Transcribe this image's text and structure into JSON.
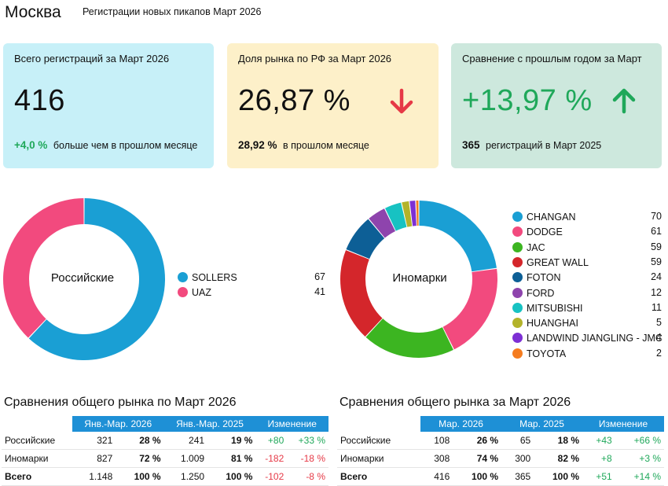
{
  "header": {
    "city": "Москва",
    "subtitle": "Регистрации новых пикапов Март 2026"
  },
  "cards": [
    {
      "label": "Всего регистраций за Март 2026",
      "value": "416",
      "delta": "+4,0 %",
      "delta_text": "больше чем в прошлом месяце",
      "delta_color": "#1fa85a",
      "background": "#c7f0f8"
    },
    {
      "label": "Доля рынка по РФ за Март 2026",
      "value": "26,87 %",
      "delta": "28,92 %",
      "delta_text": "в прошлом месяце",
      "trend": "down",
      "trend_color": "#e63946",
      "background": "#fdf0c9"
    },
    {
      "label": "Сравнение с прошлым годом за Март",
      "value": "+13,97 %",
      "delta": "365",
      "delta_text": "регистраций в Март 2025",
      "trend": "up",
      "trend_color": "#1fa85a",
      "value_color": "#1fa85a",
      "background": "#cde8dd"
    }
  ],
  "chart_data": [
    {
      "type": "pie",
      "subtype": "donut",
      "center_label": "Российские",
      "categories": [
        "SOLLERS",
        "UAZ"
      ],
      "values": [
        67,
        41
      ],
      "colors": [
        "#1a9fd4",
        "#f24a7e"
      ],
      "legend_position": "right"
    },
    {
      "type": "pie",
      "subtype": "donut",
      "center_label": "Иномарки",
      "categories": [
        "CHANGAN",
        "DODGE",
        "JAC",
        "GREAT WALL",
        "FOTON",
        "FORD",
        "MITSUBISHI",
        "HUANGHAI",
        "LANDWIND JIANGLING - JMC",
        "TOYOTA"
      ],
      "values": [
        70,
        61,
        59,
        59,
        24,
        12,
        11,
        5,
        4,
        2
      ],
      "value_labels": [
        "70",
        "61",
        "59",
        "59",
        "24",
        "12",
        "11",
        "5",
        "4",
        "2"
      ],
      "colors": [
        "#1a9fd4",
        "#f24a7e",
        "#3cb521",
        "#d4262b",
        "#0d5f96",
        "#8e44ad",
        "#17c2c2",
        "#b3b32a",
        "#7d2fd4",
        "#f57c1f"
      ],
      "legend_position": "right"
    }
  ],
  "tables": [
    {
      "title": "Сравнения общего рынка по Март 2026",
      "headers": [
        "",
        "Янв.-Мар. 2026",
        "Янв.-Мар. 2025",
        "Изменение"
      ],
      "rows": [
        {
          "name": "Российские",
          "v1": "321",
          "p1": "28 %",
          "v2": "241",
          "p2": "19 %",
          "d": "+80",
          "dp": "+33 %",
          "dir": "up"
        },
        {
          "name": "Иномарки",
          "v1": "827",
          "p1": "72 %",
          "v2": "1.009",
          "p2": "81 %",
          "d": "-182",
          "dp": "-18 %",
          "dir": "down"
        },
        {
          "name": "Всего",
          "v1": "1.148",
          "p1": "100 %",
          "v2": "1.250",
          "p2": "100 %",
          "d": "-102",
          "dp": "-8 %",
          "dir": "down"
        }
      ]
    },
    {
      "title": "Сравнения общего рынка за Март 2026",
      "headers": [
        "",
        "Мар. 2026",
        "Мар. 2025",
        "Изменение"
      ],
      "rows": [
        {
          "name": "Российские",
          "v1": "108",
          "p1": "26 %",
          "v2": "65",
          "p2": "18 %",
          "d": "+43",
          "dp": "+66 %",
          "dir": "up"
        },
        {
          "name": "Иномарки",
          "v1": "308",
          "p1": "74 %",
          "v2": "300",
          "p2": "82 %",
          "d": "+8",
          "dp": "+3 %",
          "dir": "up"
        },
        {
          "name": "Всего",
          "v1": "416",
          "p1": "100 %",
          "v2": "365",
          "p2": "100 %",
          "d": "+51",
          "dp": "+14 %",
          "dir": "up"
        }
      ]
    }
  ]
}
